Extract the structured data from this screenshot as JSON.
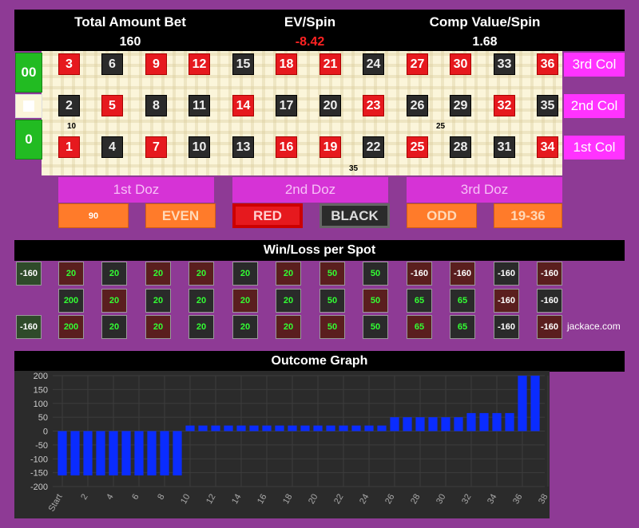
{
  "header": {
    "total_label": "Total Amount Bet",
    "total_value": "160",
    "ev_label": "EV/Spin",
    "ev_value": "-8.42",
    "ev_color": "#ff2222",
    "comp_label": "Comp Value/Spin",
    "comp_value": "1.68"
  },
  "zeros": [
    {
      "label": "00"
    },
    {
      "label": ""
    },
    {
      "label": "0"
    }
  ],
  "rows": [
    {
      "numbers": [
        {
          "n": "3",
          "c": "red"
        },
        {
          "n": "6",
          "c": "black"
        },
        {
          "n": "9",
          "c": "red"
        },
        {
          "n": "12",
          "c": "red"
        },
        {
          "n": "15",
          "c": "black"
        },
        {
          "n": "18",
          "c": "red"
        },
        {
          "n": "21",
          "c": "red"
        },
        {
          "n": "24",
          "c": "black"
        },
        {
          "n": "27",
          "c": "red"
        },
        {
          "n": "30",
          "c": "red"
        },
        {
          "n": "33",
          "c": "black"
        },
        {
          "n": "36",
          "c": "red"
        }
      ],
      "col_label": "3rd Col"
    },
    {
      "numbers": [
        {
          "n": "2",
          "c": "black"
        },
        {
          "n": "5",
          "c": "red"
        },
        {
          "n": "8",
          "c": "black"
        },
        {
          "n": "11",
          "c": "black"
        },
        {
          "n": "14",
          "c": "red"
        },
        {
          "n": "17",
          "c": "black"
        },
        {
          "n": "20",
          "c": "black"
        },
        {
          "n": "23",
          "c": "red"
        },
        {
          "n": "26",
          "c": "black"
        },
        {
          "n": "29",
          "c": "black"
        },
        {
          "n": "32",
          "c": "red"
        },
        {
          "n": "35",
          "c": "black"
        }
      ],
      "col_label": "2nd Col"
    },
    {
      "numbers": [
        {
          "n": "1",
          "c": "red"
        },
        {
          "n": "4",
          "c": "black"
        },
        {
          "n": "7",
          "c": "red"
        },
        {
          "n": "10",
          "c": "black"
        },
        {
          "n": "13",
          "c": "black"
        },
        {
          "n": "16",
          "c": "red"
        },
        {
          "n": "19",
          "c": "red"
        },
        {
          "n": "22",
          "c": "black"
        },
        {
          "n": "25",
          "c": "red"
        },
        {
          "n": "28",
          "c": "black"
        },
        {
          "n": "31",
          "c": "black"
        },
        {
          "n": "34",
          "c": "red"
        }
      ],
      "col_label": "1st Col"
    }
  ],
  "chips": [
    {
      "label": "10"
    },
    {
      "label": "25"
    },
    {
      "label": "35"
    }
  ],
  "dozens": [
    "1st Doz",
    "2nd Doz",
    "3rd Doz"
  ],
  "outside": {
    "low": "90",
    "even": "EVEN",
    "red": "RED",
    "black": "BLACK",
    "odd": "ODD",
    "high": "19-36"
  },
  "winloss": {
    "title": "Win/Loss per Spot",
    "zeros": [
      "-160",
      "",
      "-160"
    ],
    "rows": [
      [
        "20",
        "20",
        "20",
        "20",
        "20",
        "20",
        "50",
        "50",
        "-160",
        "-160",
        "-160",
        "-160"
      ],
      [
        "200",
        "20",
        "20",
        "20",
        "20",
        "20",
        "50",
        "50",
        "65",
        "65",
        "-160",
        "-160"
      ],
      [
        "200",
        "20",
        "20",
        "20",
        "20",
        "20",
        "50",
        "50",
        "65",
        "65",
        "-160",
        "-160"
      ]
    ],
    "credit": "jackace.com"
  },
  "chart_data": {
    "type": "bar",
    "title": "Outcome Graph",
    "xlabel": "",
    "ylabel": "",
    "ylim": [
      -200,
      200
    ],
    "yticks": [
      200,
      150,
      100,
      50,
      0,
      -50,
      -100,
      -150,
      -200
    ],
    "xticks": [
      "Start",
      "2",
      "4",
      "6",
      "8",
      "10",
      "12",
      "14",
      "16",
      "18",
      "20",
      "22",
      "24",
      "26",
      "28",
      "30",
      "32",
      "34",
      "36",
      "38"
    ],
    "bar_color": "#0a2cff",
    "grid": true,
    "values": [
      -160,
      -160,
      -160,
      -160,
      -160,
      -160,
      -160,
      -160,
      -160,
      -160,
      20,
      20,
      20,
      20,
      20,
      20,
      20,
      20,
      20,
      20,
      20,
      20,
      20,
      20,
      20,
      20,
      50,
      50,
      50,
      50,
      50,
      50,
      65,
      65,
      65,
      65,
      200,
      200
    ]
  }
}
